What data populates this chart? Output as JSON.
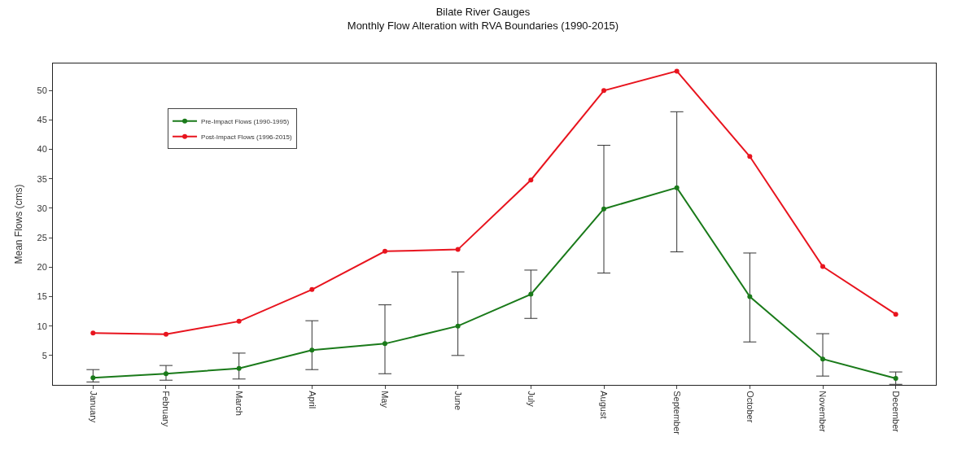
{
  "chart_data": {
    "type": "line",
    "title": "Bilate River Gauges",
    "subtitle": "Monthly Flow Alteration with RVA Boundaries (1990-2015)",
    "ylabel": "Mean Flows (cms)",
    "categories": [
      "January",
      "February",
      "March",
      "April",
      "May",
      "June",
      "July",
      "August",
      "September",
      "October",
      "November",
      "December"
    ],
    "series": [
      {
        "name": "Pre-Impact Flows (1990-1995)",
        "color": "#1a7a1a",
        "values": [
          1.2,
          1.9,
          2.8,
          5.9,
          7.0,
          10.0,
          15.4,
          29.9,
          33.5,
          15.0,
          4.4,
          1.1
        ],
        "errors": [
          [
            0.5,
            2.6
          ],
          [
            0.8,
            3.3
          ],
          [
            1.0,
            5.4
          ],
          [
            2.6,
            10.9
          ],
          [
            1.9,
            13.6
          ],
          [
            5.0,
            19.2
          ],
          [
            11.3,
            19.5
          ],
          [
            19.0,
            40.7
          ],
          [
            22.6,
            46.4
          ],
          [
            7.3,
            22.4
          ],
          [
            1.5,
            8.7
          ],
          [
            0.1,
            2.2
          ]
        ]
      },
      {
        "name": "Post-Impact Flows (1996-2015)",
        "color": "#e8141e",
        "values": [
          8.8,
          8.6,
          10.8,
          16.2,
          22.7,
          23.0,
          34.8,
          50.0,
          53.3,
          38.8,
          20.1,
          12.0
        ]
      }
    ],
    "ylim": [
      0,
      54.6
    ],
    "yticks": [
      5,
      10,
      15,
      20,
      25,
      30,
      35,
      40,
      45,
      50
    ],
    "legend": "top left",
    "marker": "circle",
    "line_style": "solid"
  }
}
